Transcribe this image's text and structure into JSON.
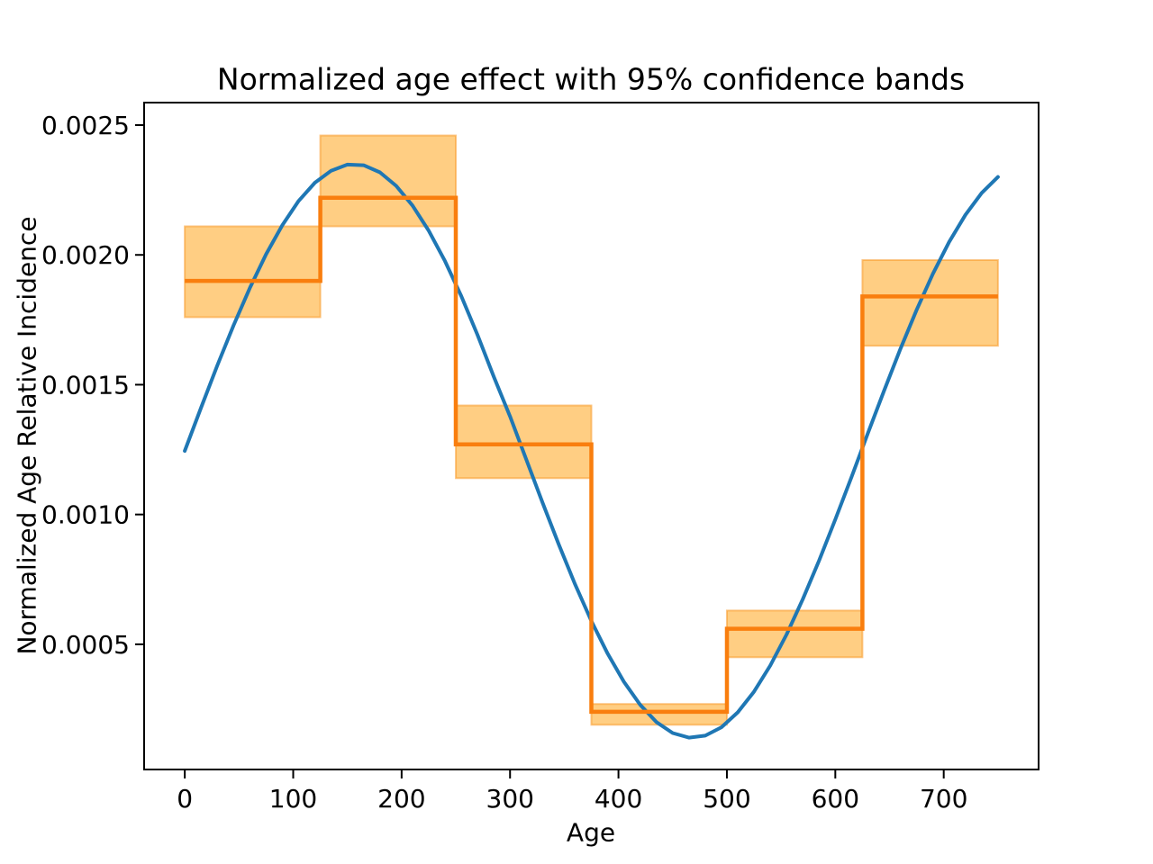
{
  "figure": {
    "background": "#ffffff",
    "text_color": "#000000"
  },
  "chart_data": {
    "type": "line",
    "title": "Normalized age effect with 95% confidence bands",
    "xlabel": "Age",
    "ylabel": "Normalized Age Relative Incidence",
    "xlim": [
      -37.5,
      787.5
    ],
    "ylim": [
      1.77e-05,
      0.0025867
    ],
    "grid": false,
    "legend": "none",
    "xticks": {
      "values": [
        0,
        100,
        200,
        300,
        400,
        500,
        600,
        700
      ],
      "labels": [
        "0",
        "100",
        "200",
        "300",
        "400",
        "500",
        "600",
        "700"
      ]
    },
    "yticks": {
      "values": [
        0.0005,
        0.001,
        0.0015,
        0.002,
        0.0025
      ],
      "labels": [
        "0.0005",
        "0.0010",
        "0.0015",
        "0.0020",
        "0.0025"
      ]
    },
    "series": [
      {
        "name": "smooth-age-effect-curve",
        "kind": "line",
        "color": "#1f77b4",
        "linewidth": 4,
        "x": [
          0,
          15,
          30,
          45,
          60,
          75,
          90,
          105,
          120,
          135,
          150,
          165,
          180,
          195,
          210,
          225,
          240,
          255,
          270,
          285,
          300,
          315,
          330,
          345,
          360,
          375,
          390,
          405,
          420,
          435,
          450,
          465,
          480,
          495,
          510,
          525,
          540,
          555,
          570,
          585,
          600,
          615,
          630,
          645,
          660,
          675,
          690,
          705,
          720,
          735,
          750
        ],
        "y": [
          0.001245,
          0.0014113,
          0.0015738,
          0.0017287,
          0.0018727,
          0.0020024,
          0.002115,
          0.0022077,
          0.0022782,
          0.0023244,
          0.002348,
          0.0023455,
          0.0023179,
          0.0022659,
          0.0021904,
          0.0020931,
          0.001976,
          0.0018413,
          0.0016919,
          0.0015306,
          0.001378,
          0.0012115,
          0.0010458,
          0.0008841,
          0.0007313,
          0.0005898,
          0.0004638,
          0.0003557,
          0.0002668,
          0.0002003,
          0.000158,
          0.0001405,
          0.0001481,
          0.0001804,
          0.000238,
          0.0003172,
          0.000418,
          0.0005378,
          0.0006736,
          0.0008224,
          0.0009809,
          0.0011453,
          0.0013121,
          0.0014773,
          0.0016372,
          0.0017882,
          0.0019268,
          0.0020501,
          0.0021545,
          0.0022385,
          0.0023002
        ]
      },
      {
        "name": "binned-estimate-with-95ci",
        "kind": "step",
        "color": "#f97e0e",
        "linewidth": 4.5,
        "band_fill": "rgba(255,166,30,0.55)",
        "band_edge": "rgba(247,152,36,0.55)",
        "band_edge_width": 2,
        "bins": [
          {
            "x0": 0,
            "x1": 125,
            "estimate": 0.0019,
            "lower": 0.00176,
            "upper": 0.00211
          },
          {
            "x0": 125,
            "x1": 250,
            "estimate": 0.00222,
            "lower": 0.00211,
            "upper": 0.00246
          },
          {
            "x0": 250,
            "x1": 375,
            "estimate": 0.00127,
            "lower": 0.00114,
            "upper": 0.00142
          },
          {
            "x0": 375,
            "x1": 500,
            "estimate": 0.00024,
            "lower": 0.00019,
            "upper": 0.00027
          },
          {
            "x0": 500,
            "x1": 625,
            "estimate": 0.00056,
            "lower": 0.00045,
            "upper": 0.00063
          },
          {
            "x0": 625,
            "x1": 750,
            "estimate": 0.00184,
            "lower": 0.00165,
            "upper": 0.00198
          }
        ]
      }
    ]
  }
}
